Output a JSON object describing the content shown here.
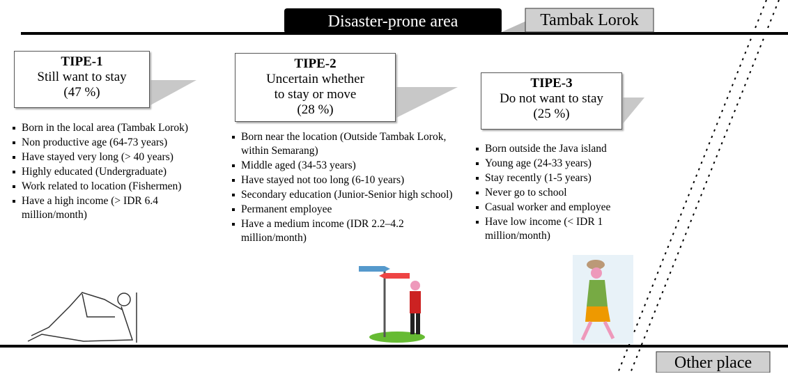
{
  "header": {
    "title": "Disaster-prone area",
    "location": "Tambak Lorok"
  },
  "types": [
    {
      "label": "TIPE-1",
      "lines": [
        "Still want to stay",
        "(47 %)"
      ],
      "traits": [
        "Born in the local area (Tambak Lorok)",
        "Non productive age (64-73 years)",
        "Have stayed very long (> 40 years)",
        "Highly educated (Undergraduate)",
        "Work related to location (Fishermen)",
        "Have a high income (> IDR 6.4 million/month)"
      ]
    },
    {
      "label": "TIPE-2",
      "lines": [
        "Uncertain whether",
        "to stay or move",
        "(28 %)"
      ],
      "traits": [
        "Born near the location (Outside Tambak Lorok, within Semarang)",
        "Middle aged (34-53 years)",
        "Have stayed not too long (6-10 years)",
        "Secondary education (Junior-Senior high school)",
        "Permanent employee",
        "Have a medium income (IDR 2.2–4.2 million/month)"
      ]
    },
    {
      "label": "TIPE-3",
      "lines": [
        "Do not want to stay",
        "(25 %)"
      ],
      "traits": [
        "Born outside the Java island",
        "Young age  (24-33 years)",
        "Stay recently (1-5 years)",
        "Never go to school",
        "Casual worker and employee",
        "Have low income (< IDR 1 million/month)"
      ]
    }
  ],
  "footer": {
    "other": "Other place"
  }
}
